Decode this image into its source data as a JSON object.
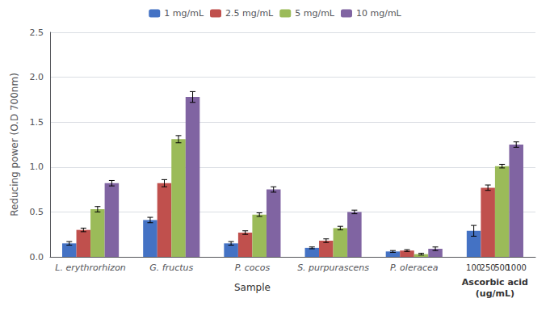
{
  "chart_data": {
    "type": "bar",
    "categories": [
      "L. erythrorhizon",
      "G. fructus",
      "P. cocos",
      "S. purpurascens",
      "P. oleracea",
      null
    ],
    "series": [
      {
        "name": "1 mg/mL",
        "color": "#4472C4",
        "values": [
          0.15,
          0.41,
          0.15,
          0.1,
          0.06,
          0.29
        ],
        "errors": [
          0.02,
          0.03,
          0.02,
          0.01,
          0.01,
          0.06
        ]
      },
      {
        "name": "2.5 mg/mL",
        "color": "#C0504D",
        "values": [
          0.3,
          0.82,
          0.27,
          0.18,
          0.07,
          0.77
        ],
        "errors": [
          0.02,
          0.04,
          0.02,
          0.02,
          0.01,
          0.03
        ]
      },
      {
        "name": "5 mg/mL",
        "color": "#9BBB59",
        "values": [
          0.53,
          1.31,
          0.47,
          0.32,
          0.03,
          1.01
        ],
        "errors": [
          0.03,
          0.04,
          0.02,
          0.02,
          0.01,
          0.02
        ]
      },
      {
        "name": "10 mg/mL",
        "color": "#8064A2",
        "values": [
          0.82,
          1.78,
          0.75,
          0.5,
          0.09,
          1.25
        ],
        "errors": [
          0.03,
          0.06,
          0.03,
          0.02,
          0.02,
          0.03
        ]
      }
    ],
    "ylabel": "Reducing power (O.D 700nm)",
    "xlabel": "Sample",
    "annotations": [
      "100",
      "250",
      "500",
      "1000",
      "Ascorbic acid\n(ug/mL)"
    ],
    "ylim": [
      0,
      2.5
    ],
    "yticks": [
      {
        "value": 0,
        "label": "0.0"
      },
      0.5,
      {
        "value": 1.0,
        "label": "1.0"
      },
      1.5,
      {
        "value": 2.0,
        "label": "2.0"
      },
      2.5
    ],
    "grid": true,
    "legend": "top"
  }
}
